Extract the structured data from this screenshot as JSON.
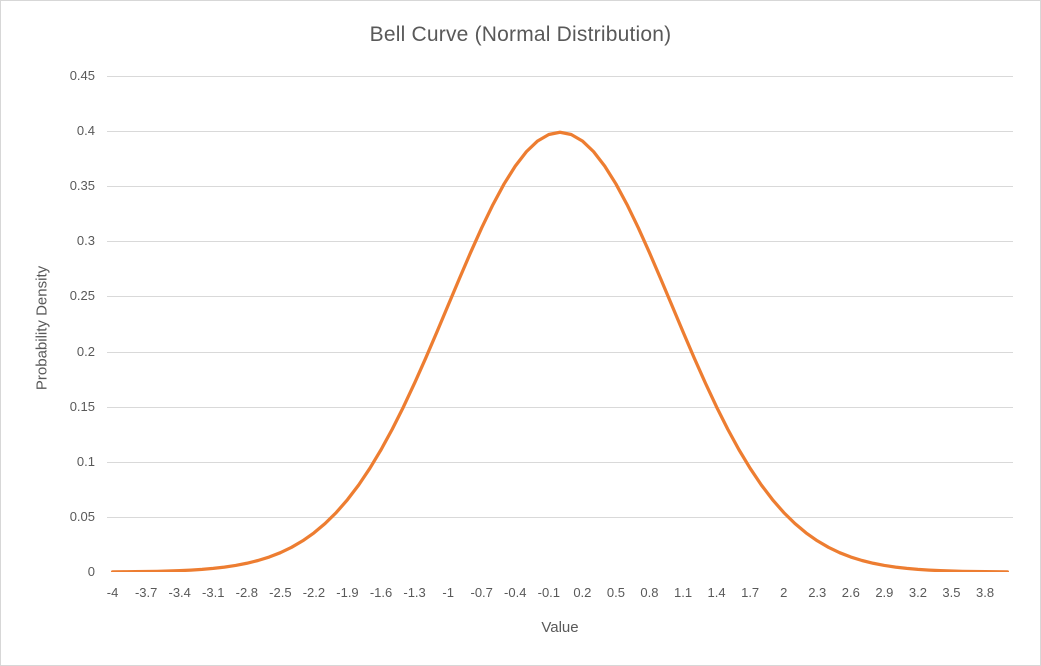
{
  "chart": {
    "title": "Bell Curve (Normal Distribution)",
    "x_axis_title": "Value",
    "y_axis_title": "Probability Density"
  },
  "chart_data": {
    "type": "line",
    "title": "Bell Curve (Normal Distribution)",
    "xlabel": "Value",
    "ylabel": "Probability Density",
    "grid": true,
    "legend": false,
    "smooth": true,
    "ylim": [
      0,
      0.45
    ],
    "y_tick_step": 0.05,
    "x_min": -4,
    "x_max": 4,
    "x_step": 0.1,
    "x": [
      -4,
      -3.9,
      -3.8,
      -3.7,
      -3.6,
      -3.5,
      -3.4,
      -3.3,
      -3.2,
      -3.1,
      -3,
      -2.9,
      -2.8,
      -2.7,
      -2.6,
      -2.5,
      -2.4,
      -2.3,
      -2.2,
      -2.1,
      -2,
      -1.9,
      -1.8,
      -1.7,
      -1.6,
      -1.5,
      -1.4,
      -1.3,
      -1.2,
      -1.1,
      -1,
      -0.9,
      -0.8,
      -0.7,
      -0.6,
      -0.5,
      -0.4,
      -0.3,
      -0.2,
      -0.1,
      0,
      0.1,
      0.2,
      0.3,
      0.4,
      0.5,
      0.6,
      0.7,
      0.8,
      0.9,
      1,
      1.1,
      1.2,
      1.3,
      1.4,
      1.5,
      1.6,
      1.7,
      1.8,
      1.9,
      2,
      2.1,
      2.2,
      2.3,
      2.4,
      2.5,
      2.6,
      2.7,
      2.8,
      2.9,
      3,
      3.1,
      3.2,
      3.3,
      3.4,
      3.5,
      3.6,
      3.7,
      3.8,
      3.9,
      4
    ],
    "series": [
      {
        "name": "Probability Density",
        "values": [
          0.00013,
          0.0002,
          0.00029,
          0.00042,
          0.00061,
          0.00087,
          0.00123,
          0.00172,
          0.00238,
          0.00327,
          0.00443,
          0.00595,
          0.00792,
          0.01042,
          0.01358,
          0.01753,
          0.02239,
          0.02833,
          0.03547,
          0.04398,
          0.05399,
          0.06562,
          0.07895,
          0.09405,
          0.11092,
          0.12952,
          0.14973,
          0.17137,
          0.19419,
          0.21785,
          0.24197,
          0.26609,
          0.28969,
          0.31225,
          0.33322,
          0.35207,
          0.36827,
          0.38139,
          0.39104,
          0.39695,
          0.39894,
          0.39695,
          0.39104,
          0.38139,
          0.36827,
          0.35207,
          0.33322,
          0.31225,
          0.28969,
          0.26609,
          0.24197,
          0.21785,
          0.19419,
          0.17137,
          0.14973,
          0.12952,
          0.11092,
          0.09405,
          0.07895,
          0.06562,
          0.05399,
          0.04398,
          0.03547,
          0.02833,
          0.02239,
          0.01753,
          0.01358,
          0.01042,
          0.00792,
          0.00595,
          0.00443,
          0.00327,
          0.00238,
          0.00172,
          0.00123,
          0.00087,
          0.00061,
          0.00042,
          0.00029,
          0.0002,
          0.00013
        ]
      }
    ],
    "x_tick_labels": [
      "-4",
      "-3.7",
      "-3.4",
      "-3.1",
      "-2.8",
      "-2.5",
      "-2.2",
      "-1.9",
      "-1.6",
      "-1.3",
      "-1",
      "-0.7",
      "-0.4",
      "-0.1",
      "0.2",
      "0.5",
      "0.8",
      "1.1",
      "1.4",
      "1.7",
      "2",
      "2.3",
      "2.6",
      "2.9",
      "3.2",
      "3.5",
      "3.8"
    ],
    "x_tick_every": 3,
    "y_tick_labels": [
      "0",
      "0.05",
      "0.1",
      "0.15",
      "0.2",
      "0.25",
      "0.3",
      "0.35",
      "0.4",
      "0.45"
    ],
    "colors": {
      "line": "#ED7D31",
      "gridline": "#D9D9D9",
      "axis_line": "#D9D9D9",
      "text": "#595959",
      "background": "#FFFFFF",
      "border": "#D7D7D7"
    }
  }
}
